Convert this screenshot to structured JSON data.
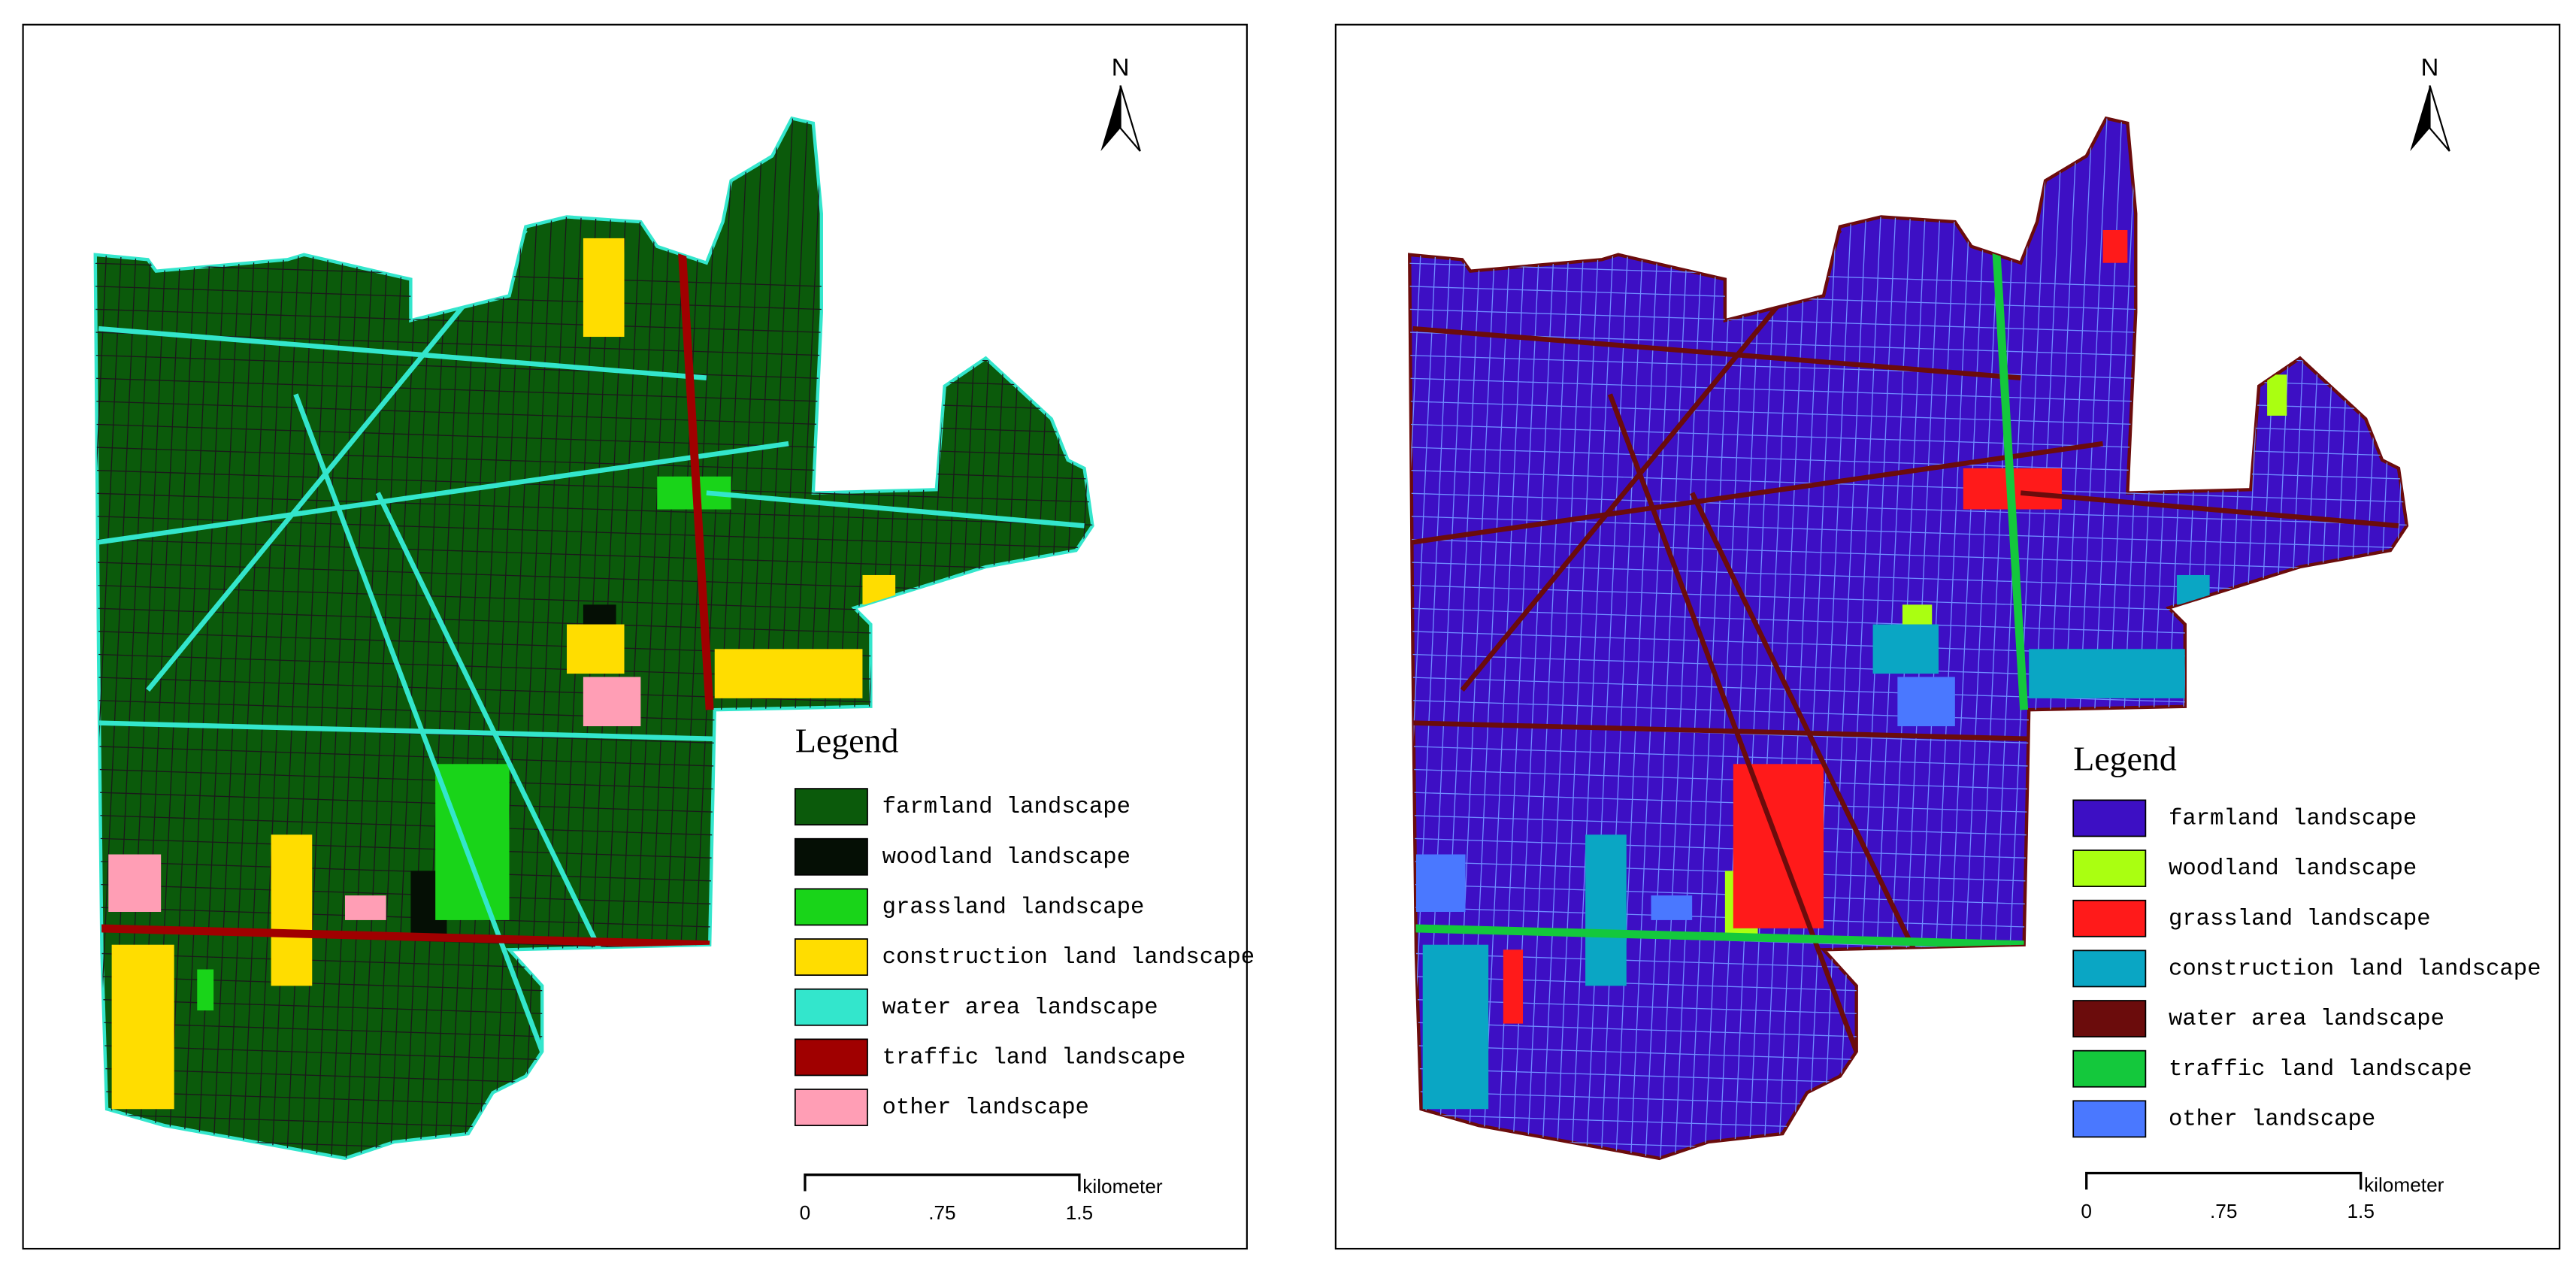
{
  "maps": [
    {
      "north": "N",
      "legend": {
        "title": "Legend",
        "items": [
          {
            "label": "farmland landscape",
            "color": "#0b5a0b"
          },
          {
            "label": "woodland landscape",
            "color": "#050f05"
          },
          {
            "label": "grassland landscape",
            "color": "#19d419"
          },
          {
            "label": "construction land landscape",
            "color": "#ffdd00"
          },
          {
            "label": "water area landscape",
            "color": "#33e6cc"
          },
          {
            "label": "traffic land landscape",
            "color": "#a00000"
          },
          {
            "label": "other landscape",
            "color": "#ff9eb5"
          }
        ]
      },
      "scale_bar": {
        "unit": "kilometer",
        "ticks": [
          "0",
          ".75",
          "1.5"
        ]
      }
    },
    {
      "north": "N",
      "legend": {
        "title": "Legend",
        "items": [
          {
            "label": "farmland landscape",
            "color": "#3d0fc4"
          },
          {
            "label": "woodland landscape",
            "color": "#aaff11"
          },
          {
            "label": "grassland landscape",
            "color": "#ff1a1a"
          },
          {
            "label": "construction land landscape",
            "color": "#0aa6c4"
          },
          {
            "label": "water area landscape",
            "color": "#6b0c0c"
          },
          {
            "label": "traffic land landscape",
            "color": "#14c83c"
          },
          {
            "label": "other landscape",
            "color": "#4a78ff"
          }
        ]
      },
      "scale_bar": {
        "unit": "kilometer",
        "ticks": [
          "0",
          ".75",
          "1.5"
        ]
      }
    }
  ]
}
